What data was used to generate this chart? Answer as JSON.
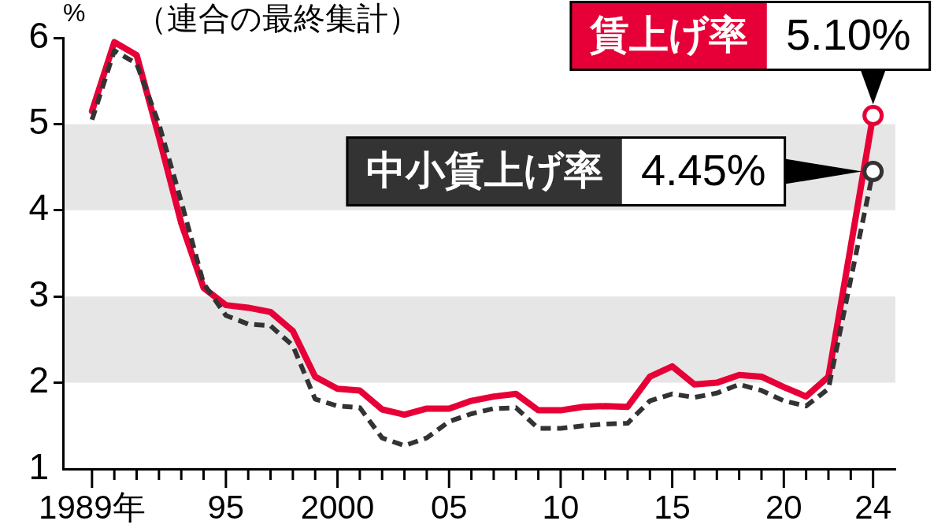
{
  "chart_data": {
    "type": "line",
    "title": "（連合の最終集計）",
    "ylabel": "%",
    "x": [
      1989,
      1990,
      1991,
      1992,
      1993,
      1994,
      1995,
      1996,
      1997,
      1998,
      1999,
      2000,
      2001,
      2002,
      2003,
      2004,
      2005,
      2006,
      2007,
      2008,
      2009,
      2010,
      2011,
      2012,
      2013,
      2014,
      2015,
      2016,
      2017,
      2018,
      2019,
      2020,
      2021,
      2022,
      2023,
      2024
    ],
    "xlim": [
      1987.7,
      2025
    ],
    "xticks": [
      {
        "value": 1989,
        "label": "1989年"
      },
      {
        "value": 1990,
        "label": null
      },
      {
        "value": 1991,
        "label": null
      },
      {
        "value": 1992,
        "label": null
      },
      {
        "value": 1993,
        "label": null
      },
      {
        "value": 1994,
        "label": null
      },
      {
        "value": 1995,
        "label": "95"
      },
      {
        "value": 1996,
        "label": null
      },
      {
        "value": 1997,
        "label": null
      },
      {
        "value": 1998,
        "label": null
      },
      {
        "value": 1999,
        "label": null
      },
      {
        "value": 2000,
        "label": "2000"
      },
      {
        "value": 2001,
        "label": null
      },
      {
        "value": 2002,
        "label": null
      },
      {
        "value": 2003,
        "label": null
      },
      {
        "value": 2004,
        "label": null
      },
      {
        "value": 2005,
        "label": "05"
      },
      {
        "value": 2006,
        "label": null
      },
      {
        "value": 2007,
        "label": null
      },
      {
        "value": 2008,
        "label": null
      },
      {
        "value": 2009,
        "label": null
      },
      {
        "value": 2010,
        "label": "10"
      },
      {
        "value": 2011,
        "label": null
      },
      {
        "value": 2012,
        "label": null
      },
      {
        "value": 2013,
        "label": null
      },
      {
        "value": 2014,
        "label": null
      },
      {
        "value": 2015,
        "label": "15"
      },
      {
        "value": 2016,
        "label": null
      },
      {
        "value": 2017,
        "label": null
      },
      {
        "value": 2018,
        "label": null
      },
      {
        "value": 2019,
        "label": null
      },
      {
        "value": 2020,
        "label": "20"
      },
      {
        "value": 2021,
        "label": null
      },
      {
        "value": 2022,
        "label": null
      },
      {
        "value": 2023,
        "label": null
      },
      {
        "value": 2024,
        "label": "24"
      }
    ],
    "ylim": [
      1,
      6
    ],
    "yticks": [
      1,
      2,
      3,
      4,
      5,
      6
    ],
    "bands": [
      {
        "axis": "y",
        "from": 4,
        "to": 5,
        "color": "#e6e6e6"
      },
      {
        "axis": "y",
        "from": 2,
        "to": 3,
        "color": "#e6e6e6"
      }
    ],
    "series": [
      {
        "name": "賃上げ率",
        "color": "#e60037",
        "line_style": "solid",
        "values": [
          5.15,
          5.95,
          5.8,
          4.85,
          3.85,
          3.1,
          2.9,
          2.87,
          2.82,
          2.6,
          2.07,
          1.93,
          1.91,
          1.69,
          1.63,
          1.7,
          1.7,
          1.79,
          1.84,
          1.87,
          1.68,
          1.68,
          1.72,
          1.73,
          1.72,
          2.07,
          2.19,
          1.98,
          2.0,
          2.09,
          2.07,
          1.95,
          1.84,
          2.07,
          3.58,
          5.1
        ],
        "value_labels": [
          null,
          null,
          null,
          null,
          null,
          null,
          null,
          null,
          null,
          null,
          null,
          null,
          null,
          null,
          null,
          null,
          null,
          null,
          null,
          null,
          null,
          null,
          null,
          null,
          null,
          null,
          null,
          null,
          null,
          null,
          null,
          null,
          null,
          null,
          null,
          "5.10%"
        ]
      },
      {
        "name": "中小賃上げ率",
        "color": "#333333",
        "line_style": "dashed",
        "values": [
          5.05,
          5.85,
          5.7,
          5.0,
          4.1,
          3.15,
          2.78,
          2.68,
          2.66,
          2.43,
          1.81,
          1.73,
          1.71,
          1.36,
          1.27,
          1.36,
          1.55,
          1.64,
          1.7,
          1.71,
          1.47,
          1.47,
          1.5,
          1.52,
          1.53,
          1.79,
          1.87,
          1.83,
          1.88,
          1.98,
          1.91,
          1.79,
          1.73,
          1.93,
          3.2,
          4.45
        ],
        "value_labels": [
          null,
          null,
          null,
          null,
          null,
          null,
          null,
          null,
          null,
          null,
          null,
          null,
          null,
          null,
          null,
          null,
          null,
          null,
          null,
          null,
          null,
          null,
          null,
          null,
          null,
          null,
          null,
          null,
          null,
          null,
          null,
          null,
          null,
          null,
          null,
          "4.45%"
        ]
      }
    ]
  }
}
